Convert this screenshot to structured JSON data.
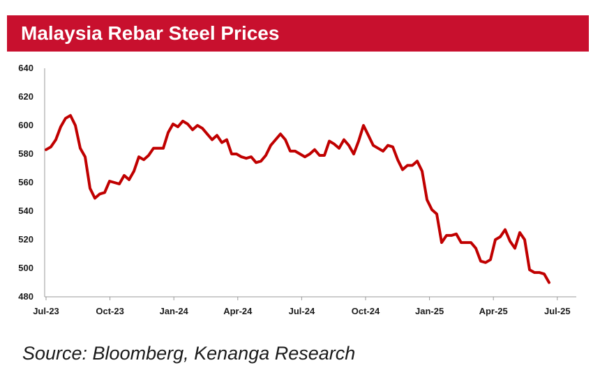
{
  "title": "Malaysia Rebar Steel Prices",
  "source": "Source: Bloomberg, Kenanga Research",
  "colors": {
    "accent": "#c8102e",
    "line": "#c00000",
    "axis": "#9a9a9a",
    "text": "#1a1a1a"
  },
  "chart_data": {
    "type": "line",
    "title": "Malaysia Rebar Steel Prices",
    "xlabel": "",
    "ylabel": "",
    "ylim": [
      480,
      640
    ],
    "yticks": [
      480,
      500,
      520,
      540,
      560,
      580,
      600,
      620,
      640
    ],
    "xticks": [
      "Jul-23",
      "Oct-23",
      "Jan-24",
      "Apr-24",
      "Jul-24",
      "Oct-24",
      "Jan-25",
      "Apr-25",
      "Jul-25"
    ],
    "grid": false,
    "legend": "none",
    "series": [
      {
        "values": [
          583,
          585,
          590,
          599,
          605,
          607,
          600,
          584,
          578,
          556,
          549,
          552,
          553,
          561,
          560,
          559,
          565,
          562,
          568,
          578,
          576,
          579,
          584,
          584,
          584,
          595,
          601,
          599,
          603,
          601,
          597,
          600,
          598,
          594,
          590,
          593,
          588,
          590,
          580,
          580,
          578,
          577,
          578,
          574,
          575,
          579,
          586,
          590,
          594,
          590,
          582,
          582,
          580,
          578,
          580,
          583,
          579,
          579,
          589,
          587,
          584,
          590,
          586,
          580,
          589,
          600,
          593,
          586,
          584,
          582,
          586,
          585,
          576,
          569,
          572,
          572,
          575,
          568,
          548,
          541,
          538,
          518,
          523,
          523,
          524,
          518,
          518,
          518,
          514,
          505,
          504,
          506,
          520,
          522,
          527,
          519,
          514,
          525,
          520,
          499,
          497,
          497,
          496,
          490
        ]
      }
    ]
  }
}
